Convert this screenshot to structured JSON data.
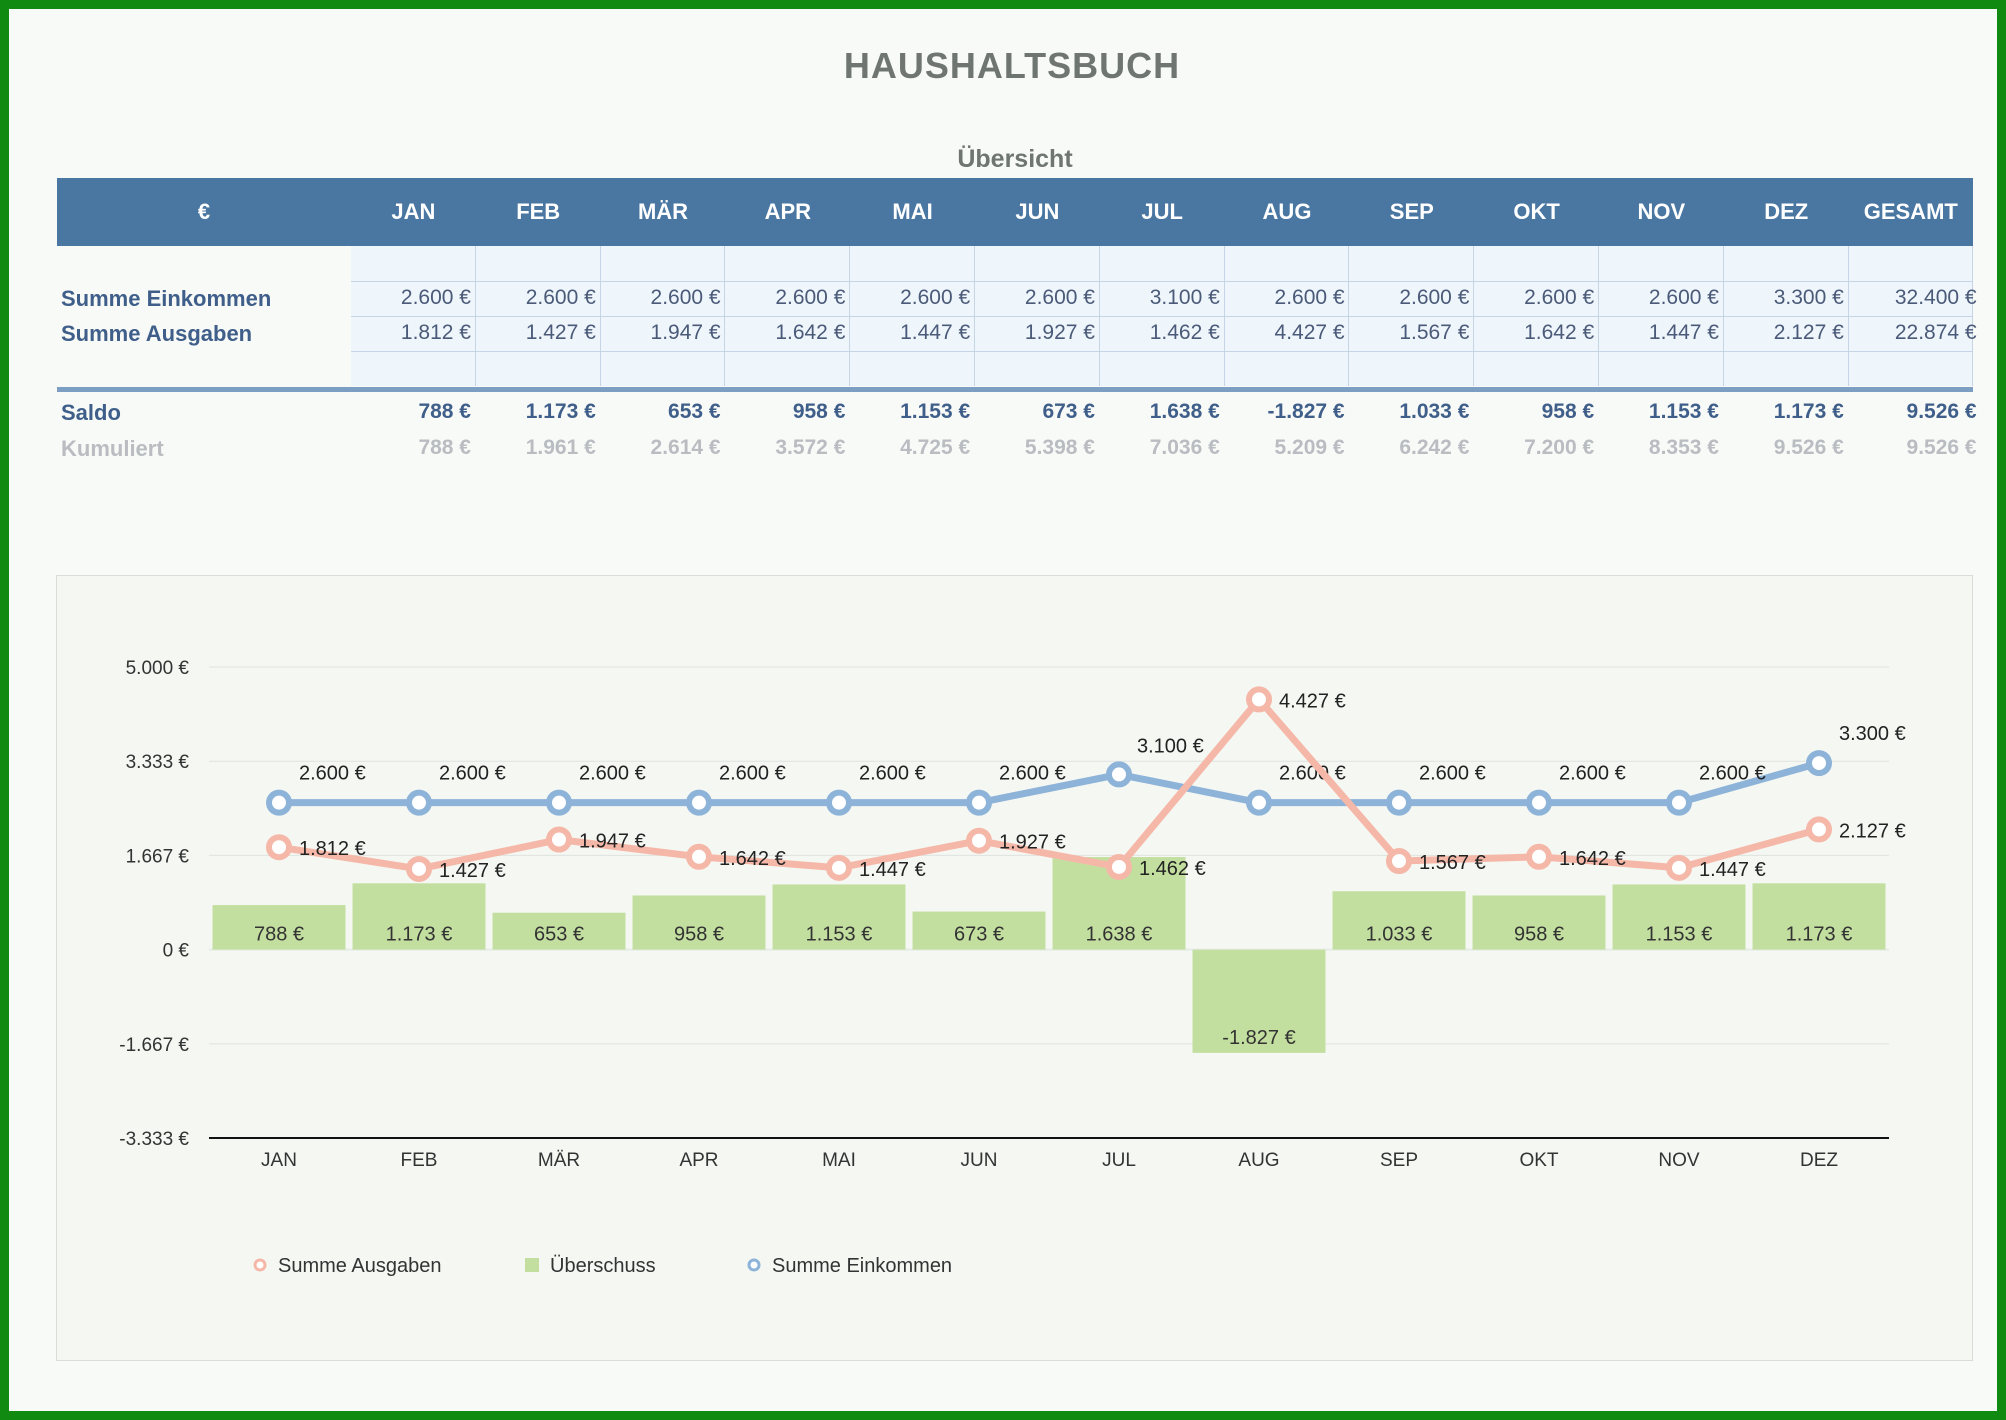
{
  "title": "HAUSHALTSBUCH",
  "subtitle": "Übersicht",
  "table": {
    "corner": "€",
    "months": [
      "JAN",
      "FEB",
      "MÄR",
      "APR",
      "MAI",
      "JUN",
      "JUL",
      "AUG",
      "SEP",
      "OKT",
      "NOV",
      "DEZ"
    ],
    "total_header": "GESAMT",
    "rows": [
      {
        "label": "Summe Einkommen",
        "values": [
          "2.600 €",
          "2.600 €",
          "2.600 €",
          "2.600 €",
          "2.600 €",
          "2.600 €",
          "3.100 €",
          "2.600 €",
          "2.600 €",
          "2.600 €",
          "2.600 €",
          "3.300 €"
        ],
        "total": "32.400 €"
      },
      {
        "label": "Summe Ausgaben",
        "values": [
          "1.812 €",
          "1.427 €",
          "1.947 €",
          "1.642 €",
          "1.447 €",
          "1.927 €",
          "1.462 €",
          "4.427 €",
          "1.567 €",
          "1.642 €",
          "1.447 €",
          "2.127 €"
        ],
        "total": "22.874 €"
      }
    ],
    "saldo": {
      "label": "Saldo",
      "values": [
        "788 €",
        "1.173 €",
        "653 €",
        "958 €",
        "1.153 €",
        "673 €",
        "1.638 €",
        "-1.827 €",
        "1.033 €",
        "958 €",
        "1.153 €",
        "1.173 €"
      ],
      "total": "9.526 €"
    },
    "kumuliert": {
      "label": "Kumuliert",
      "values": [
        "788 €",
        "1.961 €",
        "2.614 €",
        "3.572 €",
        "4.725 €",
        "5.398 €",
        "7.036 €",
        "5.209 €",
        "6.242 €",
        "7.200 €",
        "8.353 €",
        "9.526 €"
      ],
      "total": "9.526 €"
    }
  },
  "colors": {
    "header_bg": "#4a76a2",
    "einkommen": "#8db3d9",
    "ausgaben": "#f5b8a8",
    "ueberschuss": "#c3dfa0",
    "frame": "#118a12"
  },
  "chart_data": {
    "type": "bar",
    "categories": [
      "JAN",
      "FEB",
      "MÄR",
      "APR",
      "MAI",
      "JUN",
      "JUL",
      "AUG",
      "SEP",
      "OKT",
      "NOV",
      "DEZ"
    ],
    "ylim": [
      -3333,
      5000
    ],
    "yticks": [
      5000,
      3333,
      1667,
      0,
      -1667,
      -3333
    ],
    "ytick_labels": [
      "5.000 €",
      "3.333 €",
      "1.667 €",
      "0 €",
      "-1.667 €",
      "-3.333 €"
    ],
    "grid": true,
    "legend_position": "bottom-left",
    "series": [
      {
        "name": "Summe Ausgaben",
        "type": "line",
        "color": "#f5b8a8",
        "values": [
          1812,
          1427,
          1947,
          1642,
          1447,
          1927,
          1462,
          4427,
          1567,
          1642,
          1447,
          2127
        ],
        "labels": [
          "1.812 €",
          "1.427 €",
          "1.947 €",
          "1.642 €",
          "1.447 €",
          "1.927 €",
          "1.462 €",
          "4.427 €",
          "1.567 €",
          "1.642 €",
          "1.447 €",
          "2.127 €"
        ]
      },
      {
        "name": "Überschuss",
        "type": "bar",
        "color": "#c3dfa0",
        "values": [
          788,
          1173,
          653,
          958,
          1153,
          673,
          1638,
          -1827,
          1033,
          958,
          1153,
          1173
        ],
        "labels": [
          "788 €",
          "1.173 €",
          "653 €",
          "958 €",
          "1.153 €",
          "673 €",
          "1.638 €",
          "-1.827 €",
          "1.033 €",
          "958 €",
          "1.153 €",
          "1.173 €"
        ]
      },
      {
        "name": "Summe Einkommen",
        "type": "line",
        "color": "#8db3d9",
        "values": [
          2600,
          2600,
          2600,
          2600,
          2600,
          2600,
          3100,
          2600,
          2600,
          2600,
          2600,
          3300
        ],
        "labels": [
          "2.600 €",
          "2.600 €",
          "2.600 €",
          "2.600 €",
          "2.600 €",
          "2.600 €",
          "3.100 €",
          "2.600 €",
          "2.600 €",
          "2.600 €",
          "2.600 €",
          "3.300 €"
        ]
      }
    ]
  }
}
